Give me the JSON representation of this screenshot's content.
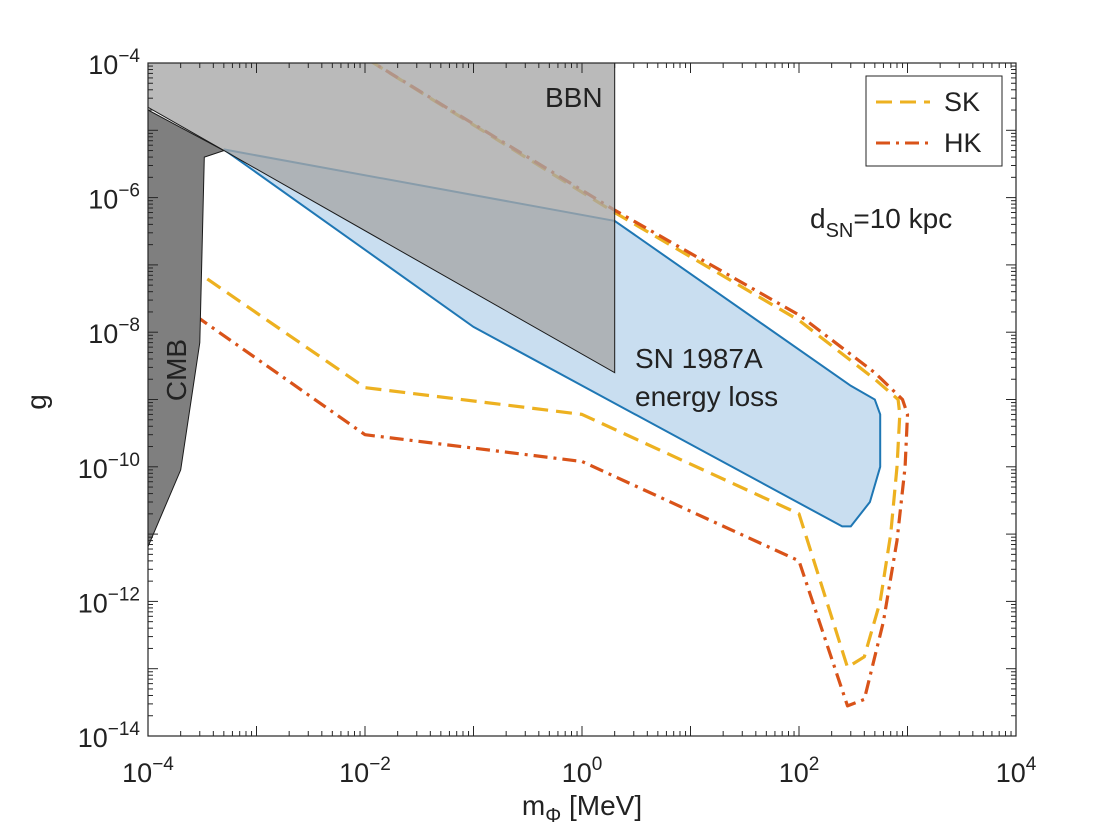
{
  "chart_data": {
    "type": "area",
    "xlabel": "m",
    "xlabel_sub": "Φ",
    "xlabel_unit": " [MeV]",
    "ylabel": "g",
    "x_scale": "log",
    "y_scale": "log",
    "xlim": [
      0.0001,
      10000
    ],
    "ylim": [
      1e-14,
      0.0001
    ],
    "grid": false,
    "legend_position": "top-right",
    "x_ticks": [
      {
        "value": 0.0001,
        "base": "10",
        "exp": "−4"
      },
      {
        "value": 0.01,
        "base": "10",
        "exp": "−2"
      },
      {
        "value": 1,
        "base": "10",
        "exp": "0"
      },
      {
        "value": 100,
        "base": "10",
        "exp": "2"
      },
      {
        "value": 10000,
        "base": "10",
        "exp": "4"
      }
    ],
    "y_ticks": [
      {
        "value": 1e-14,
        "base": "10",
        "exp": "−14"
      },
      {
        "value": 1e-12,
        "base": "10",
        "exp": "−12"
      },
      {
        "value": 1e-10,
        "base": "10",
        "exp": "−10"
      },
      {
        "value": 1e-08,
        "base": "10",
        "exp": "−8"
      },
      {
        "value": 1e-06,
        "base": "10",
        "exp": "−6"
      },
      {
        "value": 0.0001,
        "base": "10",
        "exp": "−4"
      }
    ],
    "regions": [
      {
        "name": "CMB",
        "color": "#7f7f7f",
        "points": [
          [
            0.0001,
            6.5e-12
          ],
          [
            0.0002,
            9e-11
          ],
          [
            0.0003,
            7e-09
          ],
          [
            0.00033,
            4e-06
          ],
          [
            0.0005,
            5e-06
          ],
          [
            0.0001,
            2e-05
          ]
        ]
      },
      {
        "name": "BBN",
        "color": "#a6a6a6",
        "points": [
          [
            0.0001,
            0.0001
          ],
          [
            2,
            0.0001
          ],
          [
            2,
            2.5e-09
          ],
          [
            0.0001,
            2.2e-05
          ]
        ]
      },
      {
        "name": "SN 1987A energy loss",
        "color": "#c9def0",
        "edge": "#1f77b4",
        "points": [
          [
            0.0005,
            5.2e-06
          ],
          [
            2,
            4.5e-07
          ],
          [
            300,
            1.6e-09
          ],
          [
            500,
            1e-09
          ],
          [
            560,
            6e-10
          ],
          [
            560,
            1e-10
          ],
          [
            450,
            3e-11
          ],
          [
            300,
            1.3e-11
          ],
          [
            250,
            1.3e-11
          ],
          [
            0.1,
            1.2e-08
          ],
          [
            0.0005,
            5.2e-06
          ]
        ]
      }
    ],
    "series": [
      {
        "name": "SK",
        "style": "dashed",
        "color": "#EDB120",
        "points": [
          [
            0.0001,
            2.5e-07
          ],
          [
            0.01,
            1.5e-09
          ],
          [
            1,
            6e-10
          ],
          [
            100,
            2e-11
          ],
          [
            280,
            1.05e-13
          ],
          [
            400,
            1.5e-13
          ],
          [
            560,
            1e-12
          ],
          [
            700,
            1e-11
          ],
          [
            800,
            1e-10
          ],
          [
            850,
            6e-10
          ],
          [
            820,
            1e-09
          ],
          [
            500,
            2e-09
          ],
          [
            100,
            1.5e-08
          ],
          [
            2,
            6e-07
          ],
          [
            0.01,
            0.00012
          ]
        ]
      },
      {
        "name": "HK",
        "style": "dashdot",
        "color": "#D95319",
        "points": [
          [
            0.0001,
            5.5e-08
          ],
          [
            0.01,
            3e-10
          ],
          [
            1,
            1.2e-10
          ],
          [
            100,
            4e-12
          ],
          [
            280,
            2.8e-14
          ],
          [
            400,
            3.5e-14
          ],
          [
            600,
            5e-13
          ],
          [
            800,
            8e-12
          ],
          [
            950,
            1e-10
          ],
          [
            1000,
            6e-10
          ],
          [
            900,
            1e-09
          ],
          [
            500,
            2.5e-09
          ],
          [
            100,
            1.8e-08
          ],
          [
            2,
            6.5e-07
          ],
          [
            0.01,
            0.00012
          ]
        ]
      }
    ],
    "labels": {
      "bbn": "BBN",
      "cmb": "CMB",
      "sn_line1": "SN 1987A",
      "sn_line2": "energy loss",
      "dsn_main": "d",
      "dsn_sub": "SN",
      "dsn_rest": "=10 kpc"
    }
  }
}
